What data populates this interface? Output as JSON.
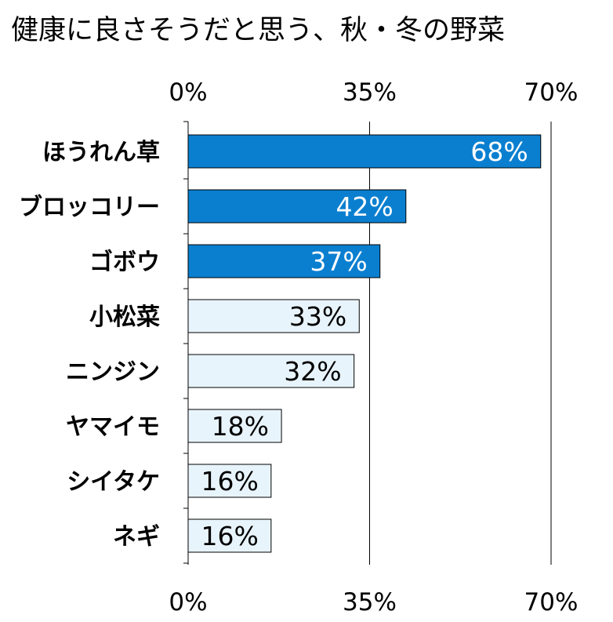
{
  "chart_data": {
    "type": "bar",
    "orientation": "horizontal",
    "title": "健康に良さそうだと思う、秋・冬の野菜",
    "categories": [
      "ほうれん草",
      "ブロッコリー",
      "ゴボウ",
      "小松菜",
      "ニンジン",
      "ヤマイモ",
      "シイタケ",
      "ネギ"
    ],
    "values": [
      68,
      42,
      37,
      33,
      32,
      18,
      16,
      16
    ],
    "value_labels": [
      "68%",
      "42%",
      "37%",
      "33%",
      "32%",
      "18%",
      "16%",
      "16%"
    ],
    "highlighted": [
      true,
      true,
      true,
      false,
      false,
      false,
      false,
      false
    ],
    "xlim": [
      0,
      70
    ],
    "ticks": [
      0,
      35,
      70
    ],
    "tick_labels": [
      "0%",
      "35%",
      "70%"
    ],
    "axis_labels_top_and_bottom": true,
    "grid": true,
    "colors": {
      "highlight_fill": "#0A7FD0",
      "normal_fill": "#E8F4FC",
      "bar_stroke": "#000000",
      "highlight_text": "#FFFFFF",
      "normal_text": "#000000"
    }
  }
}
